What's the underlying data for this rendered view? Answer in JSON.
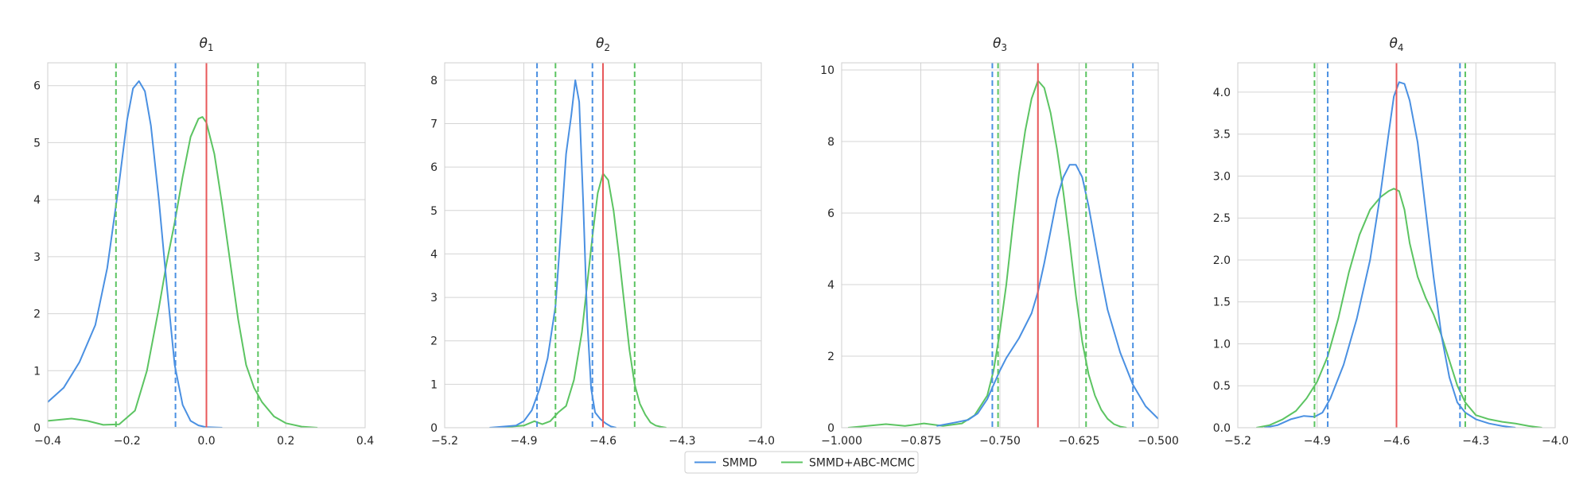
{
  "colors": {
    "smmd": "#4a90e2",
    "abc": "#5cc462",
    "truth": "#e8585a",
    "grid": "#d4d4d4",
    "frame": "#cfcfcf"
  },
  "legend": {
    "placement": "bottom-center",
    "items": [
      {
        "name": "SMMD",
        "color": "#4a90e2"
      },
      {
        "name": "SMMD+ABC-MCMC",
        "color": "#5cc462"
      }
    ]
  },
  "chart_data": [
    {
      "type": "line",
      "title": "θ",
      "title_sub": "1",
      "xlim": [
        -0.4,
        0.4
      ],
      "ylim": [
        0,
        6.4
      ],
      "xticks": [
        -0.4,
        -0.2,
        0.0,
        0.2,
        0.4
      ],
      "xtick_labels": [
        "−0.4",
        "−0.2",
        "0.0",
        "0.2",
        "0.4"
      ],
      "yticks": [
        0,
        1,
        2,
        3,
        4,
        5,
        6
      ],
      "ytick_labels": [
        "0",
        "1",
        "2",
        "3",
        "4",
        "5",
        "6"
      ],
      "grid": true,
      "truth": 0.0,
      "series": [
        {
          "name": "SMMD",
          "interval": [
            -0.078,
            -0.078
          ],
          "x": [
            -0.4,
            -0.36,
            -0.32,
            -0.28,
            -0.25,
            -0.22,
            -0.2,
            -0.185,
            -0.17,
            -0.155,
            -0.14,
            -0.12,
            -0.1,
            -0.08,
            -0.06,
            -0.04,
            -0.02,
            0.0,
            0.02,
            0.04
          ],
          "y": [
            0.45,
            0.7,
            1.15,
            1.8,
            2.8,
            4.3,
            5.4,
            5.95,
            6.08,
            5.9,
            5.3,
            4.0,
            2.5,
            1.1,
            0.4,
            0.12,
            0.04,
            0.01,
            0.005,
            0.0
          ]
        }
      ],
      "intervals": [
        {
          "series": "SMMD",
          "lines": [
            -0.078
          ]
        },
        {
          "series": "SMMD+ABC-MCMC",
          "lines": [
            -0.228,
            0.13
          ]
        }
      ],
      "series_abc": {
        "name": "SMMD+ABC-MCMC",
        "x": [
          -0.4,
          -0.34,
          -0.3,
          -0.26,
          -0.22,
          -0.18,
          -0.15,
          -0.12,
          -0.1,
          -0.08,
          -0.06,
          -0.04,
          -0.02,
          -0.01,
          0.0,
          0.02,
          0.04,
          0.06,
          0.08,
          0.1,
          0.12,
          0.14,
          0.17,
          0.2,
          0.24,
          0.28
        ],
        "y": [
          0.12,
          0.16,
          0.12,
          0.05,
          0.06,
          0.3,
          1.0,
          2.1,
          2.9,
          3.6,
          4.4,
          5.1,
          5.42,
          5.45,
          5.35,
          4.8,
          3.9,
          2.9,
          1.9,
          1.1,
          0.7,
          0.45,
          0.2,
          0.08,
          0.02,
          0.0
        ]
      }
    },
    {
      "type": "line",
      "title": "θ",
      "title_sub": "2",
      "xlim": [
        -5.2,
        -4.0
      ],
      "ylim": [
        0,
        8.4
      ],
      "xticks": [
        -5.2,
        -4.9,
        -4.6,
        -4.3,
        -4.0
      ],
      "xtick_labels": [
        "−5.2",
        "−4.9",
        "−4.6",
        "−4.3",
        "−4.0"
      ],
      "yticks": [
        0,
        1,
        2,
        3,
        4,
        5,
        6,
        7,
        8
      ],
      "ytick_labels": [
        "0",
        "1",
        "2",
        "3",
        "4",
        "5",
        "6",
        "7",
        "8"
      ],
      "grid": true,
      "truth": -4.6,
      "intervals": [
        {
          "series": "SMMD",
          "lines": [
            -4.85,
            -4.64
          ]
        },
        {
          "series": "SMMD+ABC-MCMC",
          "lines": [
            -4.78,
            -4.48
          ]
        }
      ],
      "series": [
        {
          "name": "SMMD",
          "x": [
            -5.03,
            -4.97,
            -4.93,
            -4.9,
            -4.87,
            -4.84,
            -4.81,
            -4.78,
            -4.76,
            -4.74,
            -4.72,
            -4.705,
            -4.69,
            -4.675,
            -4.66,
            -4.645,
            -4.63,
            -4.61,
            -4.59,
            -4.57,
            -4.55
          ],
          "y": [
            0.0,
            0.03,
            0.05,
            0.15,
            0.4,
            0.9,
            1.6,
            2.8,
            4.5,
            6.3,
            7.2,
            8.0,
            7.5,
            5.2,
            2.5,
            0.9,
            0.35,
            0.2,
            0.1,
            0.03,
            0.0
          ]
        }
      ],
      "series_abc": {
        "name": "SMMD+ABC-MCMC",
        "x": [
          -5.0,
          -4.94,
          -4.9,
          -4.86,
          -4.83,
          -4.8,
          -4.77,
          -4.74,
          -4.71,
          -4.68,
          -4.66,
          -4.64,
          -4.62,
          -4.6,
          -4.58,
          -4.56,
          -4.54,
          -4.52,
          -4.5,
          -4.48,
          -4.46,
          -4.44,
          -4.42,
          -4.4,
          -4.38,
          -4.36
        ],
        "y": [
          0.0,
          0.03,
          0.05,
          0.15,
          0.08,
          0.15,
          0.35,
          0.5,
          1.1,
          2.2,
          3.3,
          4.4,
          5.4,
          5.85,
          5.7,
          5.0,
          4.0,
          2.9,
          1.8,
          1.0,
          0.55,
          0.3,
          0.12,
          0.05,
          0.02,
          0.0
        ]
      }
    },
    {
      "type": "line",
      "title": "θ",
      "title_sub": "3",
      "xlim": [
        -1.0,
        -0.5
      ],
      "ylim": [
        0,
        10.2
      ],
      "xticks": [
        -1.0,
        -0.875,
        -0.75,
        -0.625,
        -0.5
      ],
      "xtick_labels": [
        "−1.000",
        "−0.875",
        "−0.750",
        "−0.625",
        "−0.500"
      ],
      "yticks": [
        0,
        2,
        4,
        6,
        8,
        10
      ],
      "ytick_labels": [
        "0",
        "2",
        "4",
        "6",
        "8",
        "10"
      ],
      "grid": true,
      "truth": -0.69,
      "intervals": [
        {
          "series": "SMMD",
          "lines": [
            -0.762,
            -0.54
          ]
        },
        {
          "series": "SMMD+ABC-MCMC",
          "lines": [
            -0.753,
            -0.614
          ]
        }
      ],
      "series": [
        {
          "name": "SMMD",
          "x": [
            -0.85,
            -0.82,
            -0.8,
            -0.785,
            -0.77,
            -0.76,
            -0.75,
            -0.74,
            -0.72,
            -0.7,
            -0.69,
            -0.68,
            -0.67,
            -0.66,
            -0.65,
            -0.64,
            -0.63,
            -0.62,
            -0.61,
            -0.6,
            -0.59,
            -0.58,
            -0.56,
            -0.54,
            -0.52,
            -0.5
          ],
          "y": [
            0.05,
            0.15,
            0.22,
            0.4,
            0.8,
            1.2,
            1.6,
            1.95,
            2.5,
            3.2,
            3.8,
            4.6,
            5.5,
            6.4,
            7.0,
            7.35,
            7.35,
            7.0,
            6.2,
            5.2,
            4.2,
            3.3,
            2.1,
            1.2,
            0.6,
            0.25
          ]
        }
      ],
      "series_abc": {
        "name": "SMMD+ABC-MCMC",
        "x": [
          -0.99,
          -0.96,
          -0.93,
          -0.9,
          -0.87,
          -0.84,
          -0.81,
          -0.79,
          -0.77,
          -0.76,
          -0.75,
          -0.74,
          -0.73,
          -0.72,
          -0.71,
          -0.7,
          -0.69,
          -0.68,
          -0.67,
          -0.66,
          -0.65,
          -0.64,
          -0.63,
          -0.62,
          -0.61,
          -0.6,
          -0.59,
          -0.58,
          -0.57,
          -0.56,
          -0.55
        ],
        "y": [
          0.0,
          0.05,
          0.1,
          0.05,
          0.12,
          0.05,
          0.12,
          0.35,
          0.9,
          1.6,
          2.7,
          4.0,
          5.6,
          7.1,
          8.3,
          9.2,
          9.7,
          9.5,
          8.8,
          7.8,
          6.6,
          5.2,
          3.7,
          2.4,
          1.5,
          0.9,
          0.5,
          0.25,
          0.1,
          0.03,
          0.0
        ]
      }
    },
    {
      "type": "line",
      "title": "θ",
      "title_sub": "4",
      "xlim": [
        -5.2,
        -4.0
      ],
      "ylim": [
        0,
        4.35
      ],
      "xticks": [
        -5.2,
        -4.9,
        -4.6,
        -4.3,
        -4.0
      ],
      "xtick_labels": [
        "−5.2",
        "−4.9",
        "−4.6",
        "−4.3",
        "−4.0"
      ],
      "yticks": [
        0,
        0.5,
        1.0,
        1.5,
        2.0,
        2.5,
        3.0,
        3.5,
        4.0
      ],
      "ytick_labels": [
        "0.0",
        "0.5",
        "1.0",
        "1.5",
        "2.0",
        "2.5",
        "3.0",
        "3.5",
        "4.0"
      ],
      "grid": true,
      "truth": -4.6,
      "intervals": [
        {
          "series": "SMMD",
          "lines": [
            -4.86,
            -4.36
          ]
        },
        {
          "series": "SMMD+ABC-MCMC",
          "lines": [
            -4.91,
            -4.34
          ]
        }
      ],
      "series": [
        {
          "name": "SMMD",
          "x": [
            -5.1,
            -5.05,
            -5.0,
            -4.95,
            -4.91,
            -4.88,
            -4.85,
            -4.8,
            -4.75,
            -4.7,
            -4.66,
            -4.63,
            -4.61,
            -4.59,
            -4.57,
            -4.55,
            -4.52,
            -4.49,
            -4.46,
            -4.43,
            -4.4,
            -4.37,
            -4.34,
            -4.3,
            -4.25,
            -4.2,
            -4.15
          ],
          "y": [
            0.0,
            0.03,
            0.1,
            0.14,
            0.13,
            0.18,
            0.35,
            0.75,
            1.3,
            2.0,
            2.8,
            3.5,
            3.95,
            4.12,
            4.1,
            3.9,
            3.4,
            2.6,
            1.8,
            1.1,
            0.6,
            0.3,
            0.18,
            0.1,
            0.05,
            0.02,
            0.0
          ]
        }
      ],
      "series_abc": {
        "name": "SMMD+ABC-MCMC",
        "x": [
          -5.13,
          -5.08,
          -5.03,
          -4.98,
          -4.94,
          -4.9,
          -4.86,
          -4.82,
          -4.78,
          -4.74,
          -4.7,
          -4.66,
          -4.63,
          -4.61,
          -4.59,
          -4.57,
          -4.55,
          -4.52,
          -4.49,
          -4.46,
          -4.43,
          -4.4,
          -4.37,
          -4.34,
          -4.3,
          -4.25,
          -4.2,
          -4.15,
          -4.1,
          -4.05
        ],
        "y": [
          0.0,
          0.03,
          0.1,
          0.2,
          0.35,
          0.55,
          0.85,
          1.3,
          1.85,
          2.3,
          2.6,
          2.75,
          2.82,
          2.85,
          2.82,
          2.6,
          2.2,
          1.8,
          1.55,
          1.35,
          1.1,
          0.8,
          0.5,
          0.3,
          0.15,
          0.1,
          0.07,
          0.05,
          0.02,
          0.0
        ]
      }
    }
  ]
}
